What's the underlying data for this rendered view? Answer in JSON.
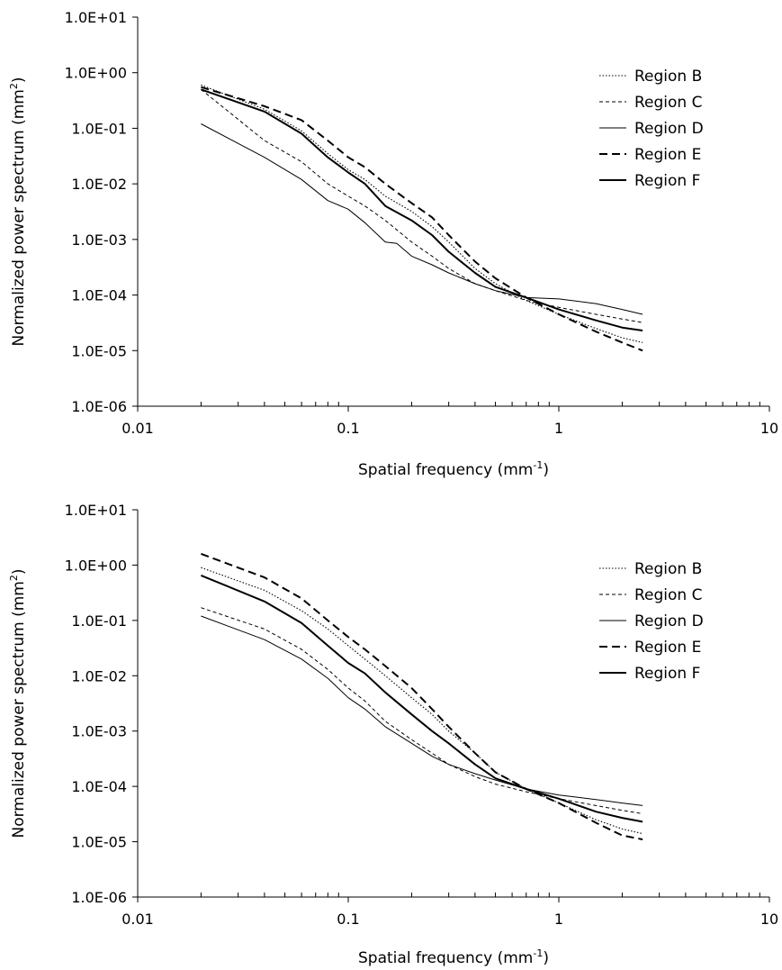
{
  "chart_data": [
    {
      "type": "line",
      "xlabel": "Spatial frequency (mm",
      "xlabel_sup": "-1",
      "xlabel_tail": ")",
      "ylabel": "Normalized power spectrum (mm",
      "ylabel_sup": "2",
      "ylabel_tail": ")",
      "xscale": "log",
      "yscale": "log",
      "xlim": [
        0.01,
        10
      ],
      "ylim": [
        1e-06,
        10
      ],
      "x_tick_labels": [
        "0.01",
        "0.1",
        "1",
        "10"
      ],
      "y_tick_labels": [
        "1.0E-06",
        "1.0E-05",
        "1.0E-04",
        "1.0E-03",
        "1.0E-02",
        "1.0E-01",
        "1.0E+00",
        "1.0E+01"
      ],
      "grid": false,
      "legend_position": "top-right",
      "series": [
        {
          "name": "Region B",
          "style": "dotted",
          "x": [
            0.02,
            0.04,
            0.06,
            0.08,
            0.1,
            0.12,
            0.15,
            0.2,
            0.25,
            0.3,
            0.4,
            0.5,
            0.7,
            1.0,
            1.5,
            2.0,
            2.5
          ],
          "y": [
            0.6,
            0.22,
            0.09,
            0.035,
            0.018,
            0.012,
            0.006,
            0.0032,
            0.0017,
            0.0009,
            0.0003,
            0.00016,
            8e-05,
            4.5e-05,
            2.5e-05,
            1.7e-05,
            1.4e-05
          ]
        },
        {
          "name": "Region C",
          "style": "short-dash",
          "x": [
            0.02,
            0.04,
            0.06,
            0.08,
            0.1,
            0.12,
            0.15,
            0.2,
            0.25,
            0.3,
            0.4,
            0.5,
            0.7,
            1.0,
            1.5,
            2.0,
            2.5
          ],
          "y": [
            0.5,
            0.06,
            0.025,
            0.01,
            0.006,
            0.004,
            0.0022,
            0.0009,
            0.0005,
            0.0003,
            0.00016,
            0.00012,
            8e-05,
            6e-05,
            4.5e-05,
            3.7e-05,
            3.2e-05
          ]
        },
        {
          "name": "Region D",
          "style": "thin-solid",
          "x": [
            0.02,
            0.04,
            0.06,
            0.08,
            0.1,
            0.12,
            0.15,
            0.17,
            0.2,
            0.25,
            0.3,
            0.4,
            0.5,
            0.7,
            1.0,
            1.5,
            2.0,
            2.5
          ],
          "y": [
            0.12,
            0.03,
            0.012,
            0.005,
            0.0035,
            0.002,
            0.0009,
            0.00085,
            0.0005,
            0.00035,
            0.00025,
            0.00016,
            0.00012,
            9e-05,
            8.5e-05,
            7e-05,
            5.5e-05,
            4.5e-05
          ]
        },
        {
          "name": "Region E",
          "style": "long-dash",
          "x": [
            0.02,
            0.04,
            0.06,
            0.08,
            0.1,
            0.12,
            0.15,
            0.2,
            0.25,
            0.3,
            0.4,
            0.5,
            0.7,
            1.0,
            1.5,
            2.0,
            2.5
          ],
          "y": [
            0.55,
            0.25,
            0.14,
            0.06,
            0.03,
            0.02,
            0.01,
            0.0045,
            0.0025,
            0.0012,
            0.0004,
            0.0002,
            9e-05,
            4.5e-05,
            2.2e-05,
            1.4e-05,
            1e-05
          ]
        },
        {
          "name": "Region F",
          "style": "thick-solid",
          "x": [
            0.02,
            0.04,
            0.06,
            0.08,
            0.1,
            0.12,
            0.15,
            0.2,
            0.25,
            0.3,
            0.4,
            0.5,
            0.7,
            1.0,
            1.5,
            2.0,
            2.5
          ],
          "y": [
            0.5,
            0.2,
            0.08,
            0.03,
            0.016,
            0.01,
            0.004,
            0.0022,
            0.0012,
            0.0006,
            0.00025,
            0.00014,
            9e-05,
            5.5e-05,
            3.5e-05,
            2.6e-05,
            2.3e-05
          ]
        }
      ]
    },
    {
      "type": "line",
      "xlabel": "Spatial frequency (mm",
      "xlabel_sup": "-1",
      "xlabel_tail": ")",
      "ylabel": "Normalized power spectrum (mm",
      "ylabel_sup": "2",
      "ylabel_tail": ")",
      "xscale": "log",
      "yscale": "log",
      "xlim": [
        0.01,
        10
      ],
      "ylim": [
        1e-06,
        10
      ],
      "x_tick_labels": [
        "0.01",
        "0.1",
        "1",
        "10"
      ],
      "y_tick_labels": [
        "1.0E-06",
        "1.0E-05",
        "1.0E-04",
        "1.0E-03",
        "1.0E-02",
        "1.0E-01",
        "1.0E+00",
        "1.0E+01"
      ],
      "grid": false,
      "legend_position": "top-right",
      "series": [
        {
          "name": "Region B",
          "style": "dotted",
          "x": [
            0.02,
            0.04,
            0.06,
            0.08,
            0.1,
            0.12,
            0.15,
            0.2,
            0.25,
            0.3,
            0.4,
            0.5,
            0.7,
            1.0,
            1.5,
            2.0,
            2.5
          ],
          "y": [
            0.9,
            0.35,
            0.15,
            0.07,
            0.035,
            0.02,
            0.01,
            0.004,
            0.002,
            0.001,
            0.0004,
            0.00018,
            9e-05,
            5e-05,
            2.5e-05,
            1.7e-05,
            1.4e-05
          ]
        },
        {
          "name": "Region C",
          "style": "short-dash",
          "x": [
            0.02,
            0.04,
            0.06,
            0.08,
            0.1,
            0.12,
            0.15,
            0.2,
            0.25,
            0.3,
            0.4,
            0.5,
            0.7,
            1.0,
            1.5,
            2.0,
            2.5
          ],
          "y": [
            0.17,
            0.07,
            0.03,
            0.013,
            0.006,
            0.0035,
            0.0015,
            0.0007,
            0.0004,
            0.00025,
            0.00015,
            0.00011,
            8e-05,
            6e-05,
            4.5e-05,
            3.7e-05,
            3.2e-05
          ]
        },
        {
          "name": "Region D",
          "style": "thin-solid",
          "x": [
            0.02,
            0.04,
            0.06,
            0.08,
            0.1,
            0.12,
            0.15,
            0.2,
            0.25,
            0.3,
            0.4,
            0.5,
            0.7,
            1.0,
            1.5,
            2.0,
            2.5
          ],
          "y": [
            0.12,
            0.045,
            0.02,
            0.009,
            0.004,
            0.0025,
            0.0012,
            0.0006,
            0.00035,
            0.00025,
            0.00017,
            0.00013,
            9e-05,
            7e-05,
            5.8e-05,
            5e-05,
            4.5e-05
          ]
        },
        {
          "name": "Region E",
          "style": "long-dash",
          "x": [
            0.02,
            0.04,
            0.06,
            0.08,
            0.1,
            0.12,
            0.15,
            0.2,
            0.25,
            0.3,
            0.4,
            0.5,
            0.7,
            1.0,
            1.5,
            2.0,
            2.5
          ],
          "y": [
            1.6,
            0.6,
            0.25,
            0.1,
            0.05,
            0.03,
            0.015,
            0.006,
            0.0025,
            0.0012,
            0.0004,
            0.00018,
            9e-05,
            5e-05,
            2.2e-05,
            1.3e-05,
            1.1e-05
          ]
        },
        {
          "name": "Region F",
          "style": "thick-solid",
          "x": [
            0.02,
            0.04,
            0.06,
            0.08,
            0.1,
            0.12,
            0.15,
            0.2,
            0.25,
            0.3,
            0.4,
            0.5,
            0.7,
            1.0,
            1.5,
            2.0,
            2.5
          ],
          "y": [
            0.65,
            0.22,
            0.09,
            0.035,
            0.017,
            0.011,
            0.005,
            0.002,
            0.001,
            0.0006,
            0.00025,
            0.00014,
            9e-05,
            6e-05,
            3.5e-05,
            2.7e-05,
            2.3e-05
          ]
        }
      ]
    }
  ]
}
